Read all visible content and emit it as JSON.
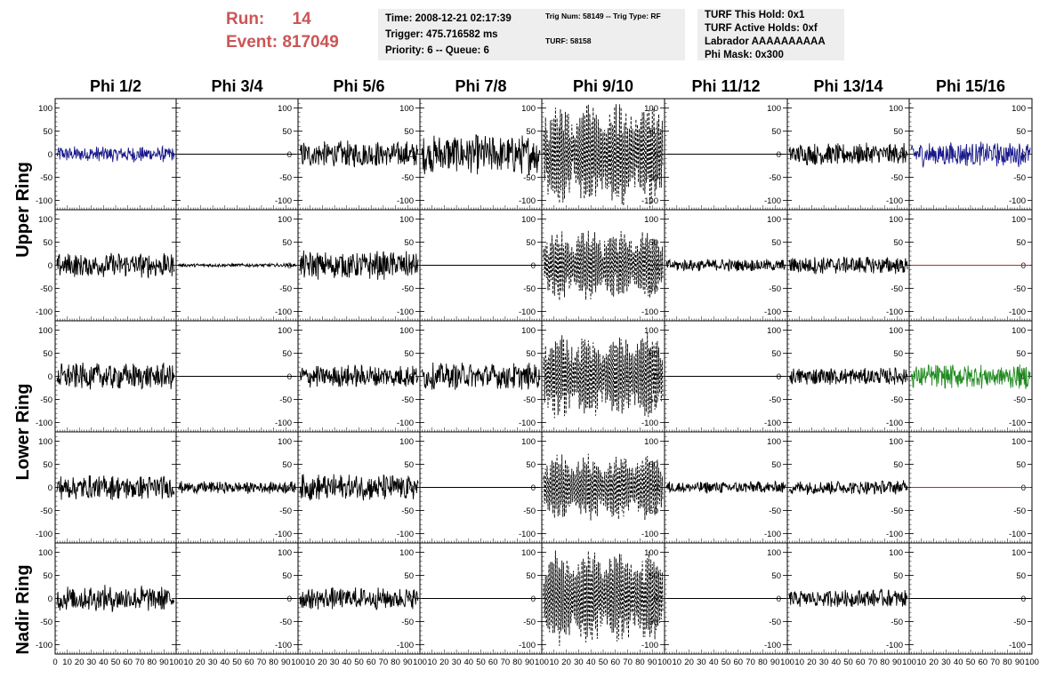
{
  "header": {
    "run_label": "Run:",
    "run_value": "14",
    "event_label": "Event:",
    "event_value": "817049"
  },
  "info_box_1": {
    "time": "Time: 2008-12-21 02:17:39",
    "trigger": "Trigger: 475.716582 ms",
    "priority": "Priority: 6 -- Queue: 6"
  },
  "info_box_2": {
    "trig": "Trig Num: 58149 -- Trig Type: RF",
    "turf": "TURF: 58158"
  },
  "info_box_3": {
    "hold": "TURF This Hold: 0x1",
    "active": "TURF Active Holds: 0xf",
    "labrador": "Labrador AAAAAAAAAA",
    "phimask": "Phi Mask: 0x300"
  },
  "chart_data": {
    "type": "line",
    "columns": [
      "Phi 1/2",
      "Phi 3/4",
      "Phi 5/6",
      "Phi 7/8",
      "Phi 9/10",
      "Phi 11/12",
      "Phi 13/14",
      "Phi 15/16"
    ],
    "ring_labels": [
      "Upper Ring",
      "Lower Ring",
      "Nadir Ring"
    ],
    "ylim": [
      -120,
      120
    ],
    "yticks": [
      -100,
      -50,
      0,
      50,
      100
    ],
    "xlim": [
      0,
      100
    ],
    "xtick_labels": [
      "0",
      "10",
      "20",
      "30",
      "40",
      "50",
      "60",
      "70",
      "80",
      "90",
      "100"
    ],
    "colors": {
      "black": "#000000",
      "blue": "#1a1a8c",
      "green": "#1f8a1f",
      "red": "#b03030"
    },
    "panels": [
      [
        "noise:18:blue",
        "flat:black",
        "noise:30:black",
        "noise:45:black",
        "dash:105:black",
        "flat:black",
        "noise:25:black",
        "noise:28:blue"
      ],
      [
        "noise:28:black",
        "noise:4:black",
        "noise:32:black",
        "flat:black",
        "dash:70:black",
        "noise:14:black",
        "noise:20:black",
        "flat:red"
      ],
      [
        "noise:30:black",
        "flat:black",
        "noise:26:black",
        "noise:30:black",
        "dash:85:black",
        "flat:black",
        "noise:20:black",
        "noise:28:green"
      ],
      [
        "noise:28:black",
        "noise:14:black",
        "noise:30:black",
        "flat:black",
        "dash:65:black",
        "noise:14:black",
        "noise:16:black",
        "flat:red"
      ],
      [
        "noise:30:black",
        "flat:black",
        "noise:25:black",
        "flat:black",
        "dash:95:black",
        "flat:black",
        "noise:20:black",
        "flat:black"
      ]
    ]
  }
}
